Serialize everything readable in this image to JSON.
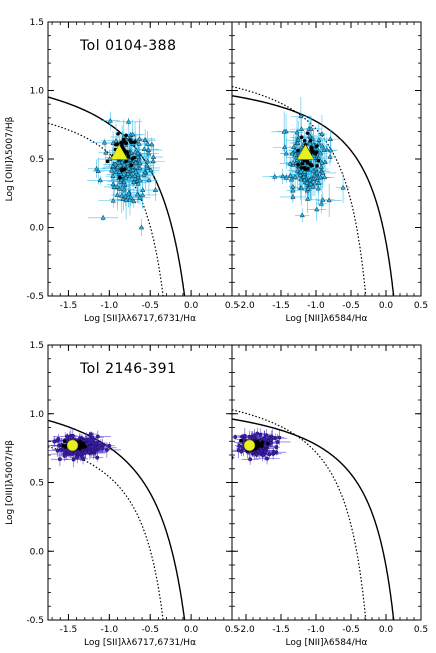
{
  "figure": {
    "rows": [
      {
        "title": "Tol 0104-388",
        "marker": "triangle",
        "point_color": "#29b6e8",
        "err_color": "#29b6e8",
        "mean_color": "#e8f020",
        "ylabel": "Log [OIII]λ5007/Hβ"
      },
      {
        "title": "Tol 2146-391",
        "marker": "circle",
        "point_color": "#3c1fa8",
        "err_color": "#4a2cc8",
        "mean_color": "#e8f020",
        "ylabel": "Log [OIII]λ5007/Hβ"
      }
    ]
  },
  "chart_data": [
    {
      "type": "scatter",
      "title": "Tol 0104-388",
      "xlabel": "Log [SII]λλ6717,6731/Hα",
      "ylabel": "Log [OIII]λ5007/Hβ",
      "xlim": [
        -1.75,
        0.5
      ],
      "ylim": [
        -0.5,
        1.5
      ],
      "xticks": [
        "-1.5",
        "-1.0",
        "-0.5",
        "0.0",
        "0.5"
      ],
      "yticks": [
        "-0.5",
        "0.0",
        "0.5",
        "1.0",
        "1.5"
      ],
      "cloud": {
        "center": [
          -0.8,
          0.45
        ],
        "spread": [
          0.15,
          0.14
        ],
        "n": 160
      },
      "mean_point": {
        "x": -0.88,
        "y": 0.54
      },
      "demarcation": [
        "Kewley 2001 max-starburst line (solid)",
        "Kauffmann-type dividing line (dotted)"
      ]
    },
    {
      "type": "scatter",
      "title": "",
      "xlabel": "Log [NII]λ6584/Hα",
      "ylabel": "",
      "xlim": [
        -2.2,
        0.5
      ],
      "ylim": [
        -0.5,
        1.5
      ],
      "xticks": [
        "-2.0",
        "-1.5",
        "-1.0",
        "-0.5",
        "0.0",
        "0.5"
      ],
      "yticks": [],
      "cloud": {
        "center": [
          -1.1,
          0.45
        ],
        "spread": [
          0.15,
          0.12
        ],
        "n": 160
      },
      "mean_point": {
        "x": -1.15,
        "y": 0.54
      },
      "demarcation": [
        "solid",
        "dotted"
      ]
    },
    {
      "type": "scatter",
      "title": "Tol 2146-391",
      "xlabel": "Log [SII]λλ6717,6731/Hα",
      "ylabel": "Log [OIII]λ5007/Hβ",
      "xlim": [
        -1.75,
        0.5
      ],
      "ylim": [
        -0.5,
        1.5
      ],
      "xticks": [
        "-1.5",
        "-1.0",
        "-0.5",
        "0.0",
        "0.5"
      ],
      "yticks": [
        "-0.5",
        "0.0",
        "0.5",
        "1.0",
        "1.5"
      ],
      "cloud": {
        "center": [
          -1.35,
          0.76
        ],
        "spread": [
          0.14,
          0.035
        ],
        "n": 150
      },
      "mean_point": {
        "x": -1.45,
        "y": 0.77
      },
      "demarcation": [
        "solid",
        "dotted"
      ]
    },
    {
      "type": "scatter",
      "title": "",
      "xlabel": "Log [NII]λ6584/Hα",
      "ylabel": "",
      "xlim": [
        -2.2,
        0.5
      ],
      "ylim": [
        -0.5,
        1.5
      ],
      "xticks": [
        "-2.0",
        "-1.5",
        "-1.0",
        "-0.5",
        "0.0",
        "0.5"
      ],
      "yticks": [],
      "cloud": {
        "center": [
          -1.85,
          0.77
        ],
        "spread": [
          0.12,
          0.035
        ],
        "n": 150
      },
      "mean_point": {
        "x": -1.95,
        "y": 0.77
      },
      "demarcation": [
        "solid",
        "dotted"
      ]
    }
  ]
}
